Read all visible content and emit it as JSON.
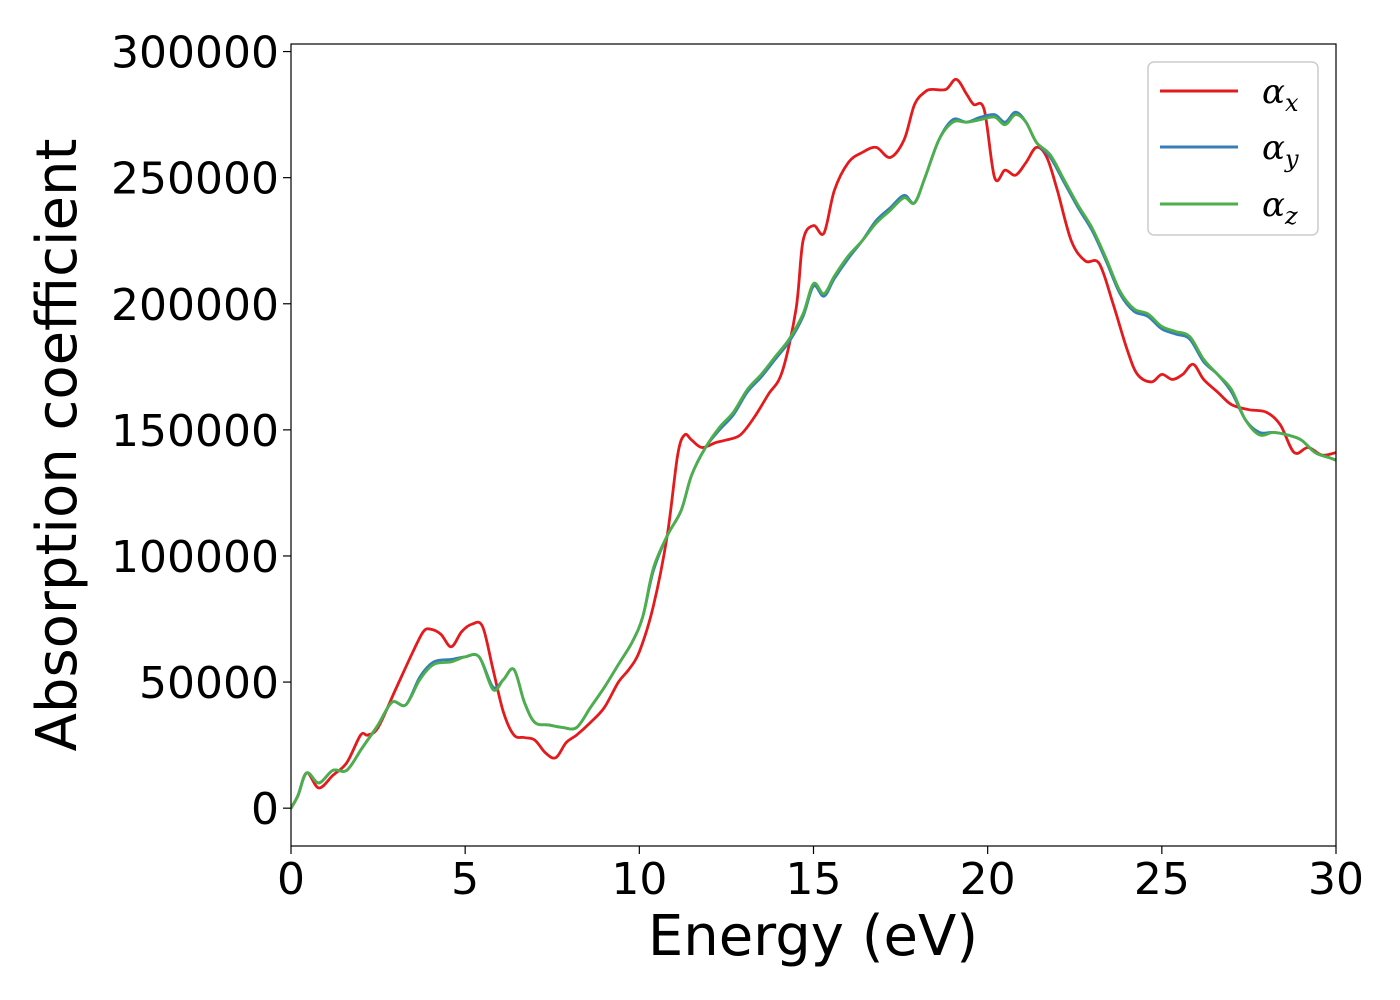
{
  "chart_data": {
    "type": "line",
    "title": "",
    "xlabel": "Energy (eV)",
    "ylabel": "Absorption coefficient",
    "xlim": [
      0,
      30
    ],
    "ylim": [
      -15000,
      303000
    ],
    "xticks": [
      "0",
      "5",
      "10",
      "15",
      "20",
      "25",
      "30"
    ],
    "xtick_values": [
      0,
      5,
      10,
      15,
      20,
      25,
      30
    ],
    "yticks": [
      "0",
      "50000",
      "100000",
      "150000",
      "200000",
      "250000",
      "300000"
    ],
    "ytick_values": [
      0,
      50000,
      100000,
      150000,
      200000,
      250000,
      300000
    ],
    "grid": false,
    "legend_position": "top-right",
    "series": [
      {
        "name": "α_x",
        "label_main": "α",
        "label_sub": "x",
        "color": "#e41a1c",
        "x": [
          0,
          0.2,
          0.45,
          0.8,
          1.2,
          1.6,
          2.0,
          2.2,
          2.5,
          3.0,
          3.5,
          3.8,
          4.0,
          4.3,
          4.6,
          4.9,
          5.2,
          5.5,
          5.8,
          6.1,
          6.4,
          6.7,
          7.0,
          7.3,
          7.6,
          7.9,
          8.2,
          8.6,
          9.0,
          9.4,
          9.7,
          10.0,
          10.4,
          10.8,
          11.1,
          11.3,
          11.5,
          11.8,
          12.2,
          12.5,
          12.9,
          13.3,
          13.7,
          14.1,
          14.5,
          14.7,
          15.0,
          15.3,
          15.6,
          16.0,
          16.4,
          16.8,
          17.2,
          17.6,
          17.9,
          18.2,
          18.4,
          18.8,
          19.1,
          19.4,
          19.6,
          19.9,
          20.2,
          20.5,
          20.8,
          21.1,
          21.4,
          21.7,
          22.0,
          22.4,
          22.8,
          23.2,
          23.6,
          24.0,
          24.3,
          24.7,
          25.0,
          25.3,
          25.6,
          25.9,
          26.2,
          26.6,
          27.0,
          27.5,
          28.0,
          28.4,
          28.8,
          29.2,
          29.6,
          30.0
        ],
        "values": [
          0,
          5000,
          14000,
          8000,
          13000,
          18000,
          29000,
          29000,
          32000,
          47000,
          62000,
          70000,
          71000,
          69000,
          64000,
          70000,
          73000,
          72000,
          55000,
          38000,
          29000,
          28000,
          27000,
          22000,
          20000,
          26000,
          29000,
          34000,
          40000,
          50000,
          55000,
          62000,
          80000,
          108000,
          140000,
          148000,
          146000,
          143000,
          145000,
          146000,
          148000,
          155000,
          164000,
          173000,
          198000,
          225000,
          231000,
          228000,
          245000,
          256000,
          260000,
          262000,
          258000,
          265000,
          279000,
          284000,
          285000,
          285000,
          289000,
          283000,
          279000,
          277000,
          250000,
          253000,
          251000,
          256000,
          262000,
          258000,
          245000,
          225000,
          217000,
          216000,
          200000,
          182000,
          172000,
          169000,
          172000,
          170000,
          172000,
          176000,
          170000,
          165000,
          160000,
          158000,
          157000,
          152000,
          141000,
          143000,
          140000,
          141000
        ]
      },
      {
        "name": "α_y",
        "label_main": "α",
        "label_sub": "y",
        "color": "#377eb8",
        "x": [
          0,
          0.2,
          0.45,
          0.8,
          1.2,
          1.6,
          2.0,
          2.2,
          2.5,
          2.9,
          3.3,
          3.7,
          4.1,
          4.6,
          5.0,
          5.4,
          5.8,
          6.1,
          6.4,
          6.7,
          7.0,
          7.4,
          7.8,
          8.2,
          8.6,
          9.0,
          9.4,
          9.8,
          10.1,
          10.4,
          10.8,
          11.2,
          11.5,
          11.9,
          12.3,
          12.7,
          13.1,
          13.5,
          13.9,
          14.3,
          14.7,
          15.0,
          15.3,
          15.6,
          16.0,
          16.4,
          16.8,
          17.2,
          17.6,
          17.9,
          18.2,
          18.6,
          19.0,
          19.4,
          19.8,
          20.2,
          20.5,
          20.8,
          21.1,
          21.4,
          21.8,
          22.2,
          22.6,
          23.0,
          23.4,
          23.8,
          24.2,
          24.6,
          25.0,
          25.4,
          25.8,
          26.2,
          26.6,
          27.0,
          27.4,
          27.8,
          28.2,
          28.6,
          29.0,
          29.4,
          29.8,
          30.0
        ],
        "values": [
          0,
          5000,
          14000,
          10000,
          15000,
          15000,
          23000,
          27000,
          33000,
          42000,
          41000,
          52000,
          58000,
          59000,
          60000,
          60000,
          48000,
          51000,
          55000,
          42000,
          34000,
          33000,
          32000,
          32000,
          40000,
          48000,
          57000,
          66000,
          76000,
          94000,
          108000,
          118000,
          132000,
          143000,
          150000,
          156000,
          165000,
          171000,
          178000,
          185000,
          195000,
          207000,
          203000,
          210000,
          218000,
          225000,
          233000,
          238000,
          243000,
          240000,
          250000,
          265000,
          273000,
          272000,
          274000,
          275000,
          272000,
          276000,
          272000,
          264000,
          258000,
          248000,
          238000,
          229000,
          217000,
          204000,
          197000,
          195000,
          190000,
          188000,
          186000,
          177000,
          172000,
          165000,
          154000,
          149000,
          149000,
          148000,
          146000,
          141000,
          139000,
          138000
        ]
      },
      {
        "name": "α_z",
        "label_main": "α",
        "label_sub": "z",
        "color": "#4daf4a",
        "x": [
          0,
          0.2,
          0.45,
          0.8,
          1.2,
          1.6,
          2.0,
          2.2,
          2.5,
          2.9,
          3.3,
          3.7,
          4.1,
          4.6,
          5.0,
          5.4,
          5.8,
          6.1,
          6.4,
          6.7,
          7.0,
          7.4,
          7.8,
          8.2,
          8.6,
          9.0,
          9.4,
          9.8,
          10.1,
          10.4,
          10.8,
          11.2,
          11.5,
          11.9,
          12.3,
          12.7,
          13.1,
          13.5,
          13.9,
          14.3,
          14.7,
          15.0,
          15.3,
          15.6,
          16.0,
          16.4,
          16.8,
          17.2,
          17.6,
          17.9,
          18.2,
          18.6,
          19.0,
          19.4,
          19.8,
          20.2,
          20.5,
          20.8,
          21.1,
          21.4,
          21.8,
          22.2,
          22.6,
          23.0,
          23.4,
          23.8,
          24.2,
          24.6,
          25.0,
          25.4,
          25.8,
          26.2,
          26.6,
          27.0,
          27.4,
          27.8,
          28.2,
          28.6,
          29.0,
          29.4,
          29.8,
          30.0
        ],
        "values": [
          0,
          5000,
          14000,
          10000,
          15000,
          15000,
          23000,
          27000,
          33000,
          42000,
          41000,
          51000,
          57000,
          58000,
          60000,
          60000,
          47000,
          51000,
          55000,
          42000,
          34000,
          33000,
          32000,
          32000,
          40000,
          48000,
          57000,
          66000,
          76000,
          95000,
          108000,
          118000,
          132000,
          143000,
          151000,
          157000,
          166000,
          172000,
          179000,
          186000,
          196000,
          208000,
          204000,
          211000,
          219000,
          225000,
          232000,
          237000,
          242000,
          240000,
          250000,
          265000,
          272000,
          272000,
          273000,
          274000,
          271000,
          275000,
          272000,
          264000,
          259000,
          249000,
          239000,
          230000,
          218000,
          205000,
          198000,
          196000,
          191000,
          189000,
          187000,
          178000,
          172000,
          166000,
          154000,
          148000,
          149000,
          148000,
          146000,
          141000,
          139000,
          138000
        ]
      }
    ]
  }
}
